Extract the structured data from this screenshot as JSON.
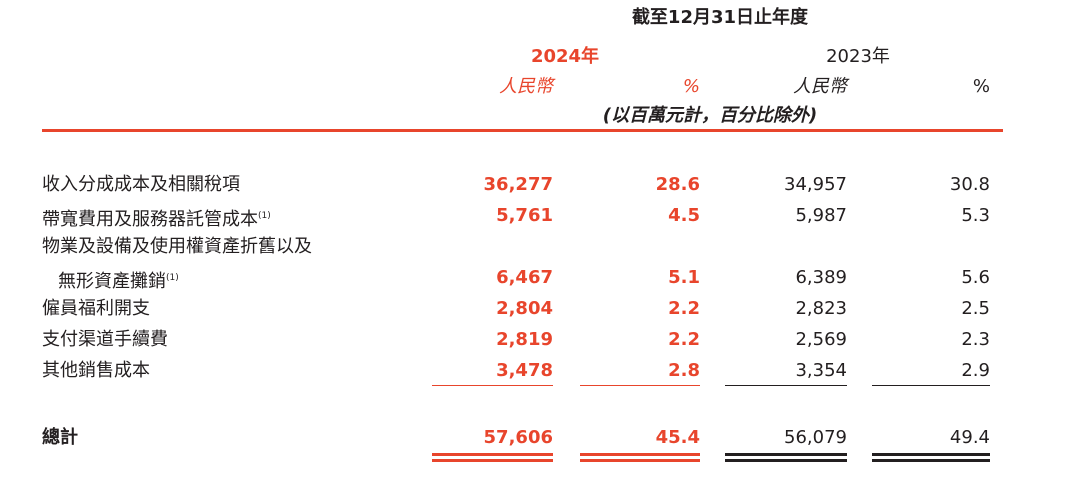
{
  "header": {
    "period": "截至12月31日止年度",
    "year_2024": "2024年",
    "year_2023": "2023年",
    "currency_2024": "人民幣",
    "percent_2024": "%",
    "currency_2023": "人民幣",
    "percent_2023": "%",
    "unit_note": "(以百萬元計，百分比除外)"
  },
  "table": {
    "rows": [
      {
        "label": [
          "收入分成成本及相關稅項"
        ],
        "cells": [
          "36,277",
          "28.6",
          "34,957",
          "30.8"
        ]
      },
      {
        "label": [
          "帶寬費用及服務器託管成本"
        ],
        "note": "(1)",
        "cells": [
          "5,761",
          "4.5",
          "5,987",
          "5.3"
        ]
      },
      {
        "label": [
          "物業及設備及使用權資產折舊以及",
          "無形資產攤銷"
        ],
        "note": "(1)",
        "cells": [
          "6,467",
          "5.1",
          "6,389",
          "5.6"
        ]
      },
      {
        "label": [
          "僱員福利開支"
        ],
        "cells": [
          "2,804",
          "2.2",
          "2,823",
          "2.5"
        ]
      },
      {
        "label": [
          "支付渠道手續費"
        ],
        "cells": [
          "2,819",
          "2.2",
          "2,569",
          "2.3"
        ]
      },
      {
        "label": [
          "其他銷售成本"
        ],
        "cells": [
          "3,478",
          "2.8",
          "3,354",
          "2.9"
        ]
      }
    ],
    "total": {
      "label": "總計",
      "cells": [
        "57,606",
        "45.4",
        "56,079",
        "49.4"
      ]
    }
  }
}
